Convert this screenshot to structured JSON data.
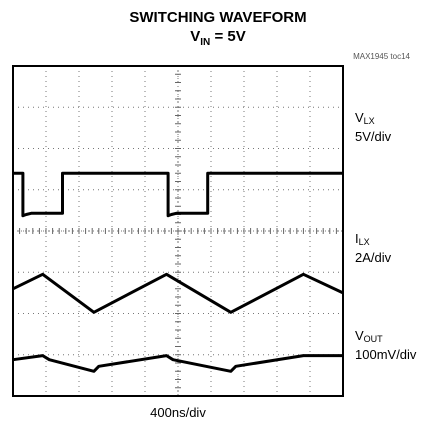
{
  "title": "SWITCHING WAVEFORM",
  "subtitle": {
    "prefix": "V",
    "sub": "IN",
    "suffix": " = 5V"
  },
  "part_number": "MAX1945 toc14",
  "time_scale": "400ns/div",
  "chart_data": {
    "type": "line",
    "divisions": {
      "x": 10,
      "y": 8
    },
    "grid": "dotted",
    "x_unit": "div",
    "channels": [
      {
        "name_main": "V",
        "name_sub": "LX",
        "scale": "5V/div",
        "points": [
          [
            0,
            5.4
          ],
          [
            0.3,
            5.4
          ],
          [
            0.3,
            4.37
          ],
          [
            0.4,
            4.4
          ],
          [
            0.55,
            4.43
          ],
          [
            1.5,
            4.43
          ],
          [
            1.5,
            5.4
          ],
          [
            4.7,
            5.4
          ],
          [
            4.7,
            4.37
          ],
          [
            4.8,
            4.4
          ],
          [
            4.95,
            4.43
          ],
          [
            5.9,
            4.43
          ],
          [
            5.9,
            5.4
          ],
          [
            10,
            5.4
          ]
        ]
      },
      {
        "name_main": "I",
        "name_sub": "LX",
        "scale": "2A/div",
        "points": [
          [
            0,
            2.6
          ],
          [
            0.9,
            2.95
          ],
          [
            2.45,
            2.03
          ],
          [
            4.65,
            2.95
          ],
          [
            6.6,
            2.03
          ],
          [
            8.8,
            2.95
          ],
          [
            10,
            2.5
          ]
        ]
      },
      {
        "name_main": "V",
        "name_sub": "OUT",
        "scale": "100mV/div",
        "points": [
          [
            0,
            0.88
          ],
          [
            0.9,
            0.98
          ],
          [
            1.1,
            0.88
          ],
          [
            2.45,
            0.6
          ],
          [
            2.6,
            0.72
          ],
          [
            4.65,
            0.98
          ],
          [
            4.85,
            0.88
          ],
          [
            6.6,
            0.6
          ],
          [
            6.75,
            0.72
          ],
          [
            8.8,
            0.98
          ],
          [
            10,
            0.98
          ]
        ]
      }
    ]
  }
}
